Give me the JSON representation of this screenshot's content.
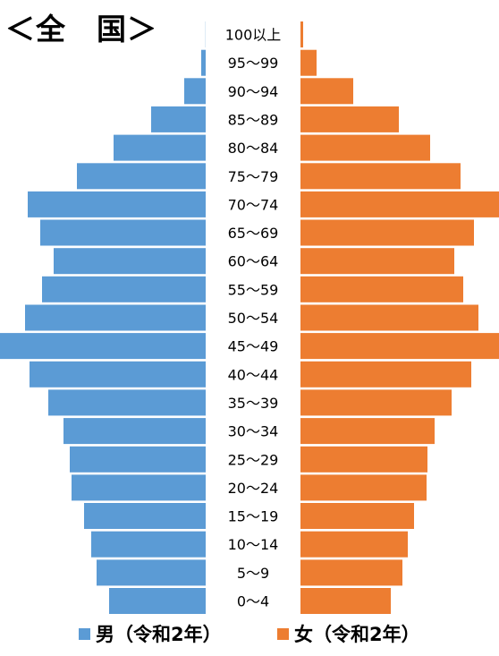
{
  "title": "＜全　国＞",
  "chart_data": {
    "type": "bar",
    "subtype": "population-pyramid",
    "title": "＜全　国＞",
    "categories": [
      "100以上",
      "95～99",
      "90～94",
      "85～89",
      "80～84",
      "75～79",
      "70～74",
      "65～69",
      "60～64",
      "55～59",
      "50～54",
      "45～49",
      "40～44",
      "35～39",
      "30～34",
      "25～29",
      "20～24",
      "15～19",
      "10～14",
      "5～9",
      "0～4"
    ],
    "series": [
      {
        "name": "男（令和2年）",
        "color": "#5B9BD5",
        "side": "left",
        "values": [
          0.2,
          5,
          24,
          61,
          103,
          144,
          199,
          185,
          170,
          183,
          202,
          230,
          197,
          176,
          159,
          152,
          150,
          136,
          128,
          122,
          108
        ]
      },
      {
        "name": "女（令和2年）",
        "color": "#ED7D31",
        "side": "right",
        "values": [
          3,
          18,
          59,
          110,
          145,
          179,
          222,
          194,
          172,
          182,
          199,
          222,
          191,
          169,
          150,
          142,
          141,
          127,
          120,
          114,
          101
        ]
      }
    ],
    "legend": {
      "position": "bottom",
      "items": [
        {
          "label": "男（令和2年）",
          "color": "#5B9BD5"
        },
        {
          "label": "女（令和2年）",
          "color": "#ED7D31"
        }
      ]
    },
    "grid": false
  }
}
